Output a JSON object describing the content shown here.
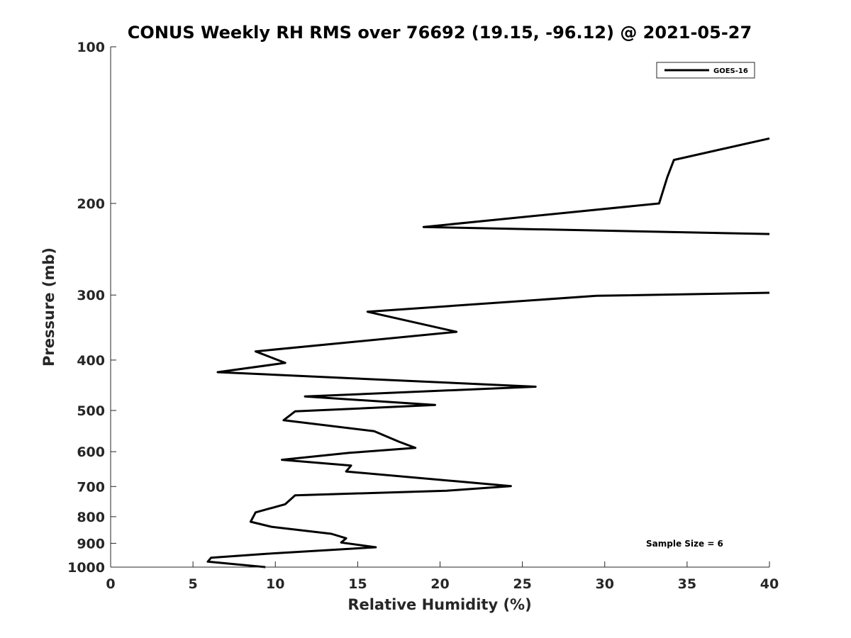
{
  "chart_data": {
    "type": "line",
    "title": "CONUS Weekly RH RMS over 76692 (19.15, -96.12) @ 2021-05-27",
    "xlabel": "Relative Humidity (%)",
    "ylabel": "Pressure (mb)",
    "xlim": [
      0,
      40
    ],
    "ylim": [
      100,
      1000
    ],
    "y_scale": "log",
    "y_reversed": true,
    "grid": false,
    "legend_position": "top-right",
    "x_ticks": [
      "0",
      "5",
      "10",
      "15",
      "20",
      "25",
      "30",
      "35",
      "40"
    ],
    "x_tick_values": [
      0,
      5,
      10,
      15,
      20,
      25,
      30,
      35,
      40
    ],
    "y_ticks": [
      "100",
      "200",
      "300",
      "400",
      "500",
      "600",
      "700",
      "800",
      "900",
      "1000"
    ],
    "y_tick_values": [
      100,
      200,
      300,
      400,
      500,
      600,
      700,
      800,
      900,
      1000
    ],
    "annotation": "Sample Size = 6",
    "series": [
      {
        "name": "GOES-16",
        "color": "#000000",
        "segments": [
          [
            [
              40.0,
              150
            ],
            [
              34.2,
              165
            ],
            [
              33.8,
              178
            ],
            [
              33.3,
              200
            ],
            [
              19.0,
              222
            ],
            [
              40.0,
              229
            ]
          ],
          [
            [
              40.0,
              297
            ],
            [
              29.5,
              301
            ],
            [
              15.6,
              323
            ],
            [
              21.0,
              353
            ],
            [
              8.8,
              385
            ],
            [
              10.6,
              405
            ],
            [
              6.5,
              422
            ],
            [
              25.8,
              450
            ],
            [
              11.8,
              470
            ],
            [
              19.7,
              488
            ],
            [
              11.2,
              502
            ],
            [
              10.5,
              522
            ],
            [
              16.0,
              548
            ],
            [
              17.5,
              574
            ],
            [
              18.5,
              590
            ],
            [
              14.5,
              603
            ],
            [
              10.4,
              622
            ],
            [
              14.6,
              638
            ],
            [
              14.3,
              655
            ],
            [
              21.0,
              684
            ],
            [
              24.3,
              699
            ],
            [
              20.4,
              713
            ],
            [
              11.2,
              728
            ],
            [
              10.6,
              757
            ],
            [
              8.8,
              785
            ],
            [
              8.5,
              818
            ],
            [
              9.8,
              837
            ],
            [
              13.4,
              863
            ],
            [
              14.3,
              880
            ],
            [
              14.0,
              897
            ],
            [
              16.1,
              916
            ],
            [
              9.6,
              942
            ],
            [
              6.1,
              959
            ],
            [
              5.9,
              976
            ],
            [
              9.4,
              1000
            ]
          ]
        ]
      }
    ]
  }
}
